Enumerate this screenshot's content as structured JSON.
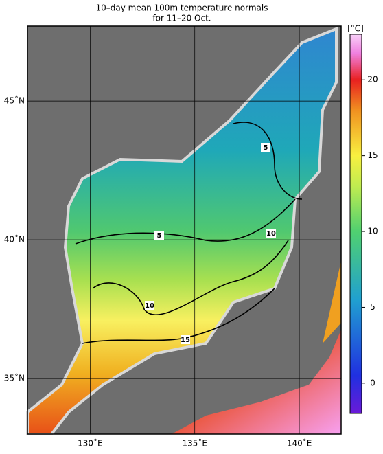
{
  "title": [
    "10–day mean 100m temperature normals",
    "for 11–20 Oct."
  ],
  "map": {
    "xlim": [
      127,
      142
    ],
    "ylim": [
      33,
      47.7
    ],
    "xticks": [
      {
        "value": 130,
        "label": "130˚E"
      },
      {
        "value": 135,
        "label": "135˚E"
      },
      {
        "value": 140,
        "label": "140˚E"
      }
    ],
    "yticks": [
      {
        "value": 35,
        "label": "35˚N"
      },
      {
        "value": 40,
        "label": "40˚N"
      },
      {
        "value": 45,
        "label": "45˚N"
      }
    ],
    "contour_labels": [
      "5",
      "5",
      "10",
      "10",
      "15"
    ]
  },
  "colorbar": {
    "unit": "[°C]",
    "lim": [
      -2,
      23
    ],
    "ticks": [
      0,
      5,
      10,
      15,
      20
    ]
  }
}
